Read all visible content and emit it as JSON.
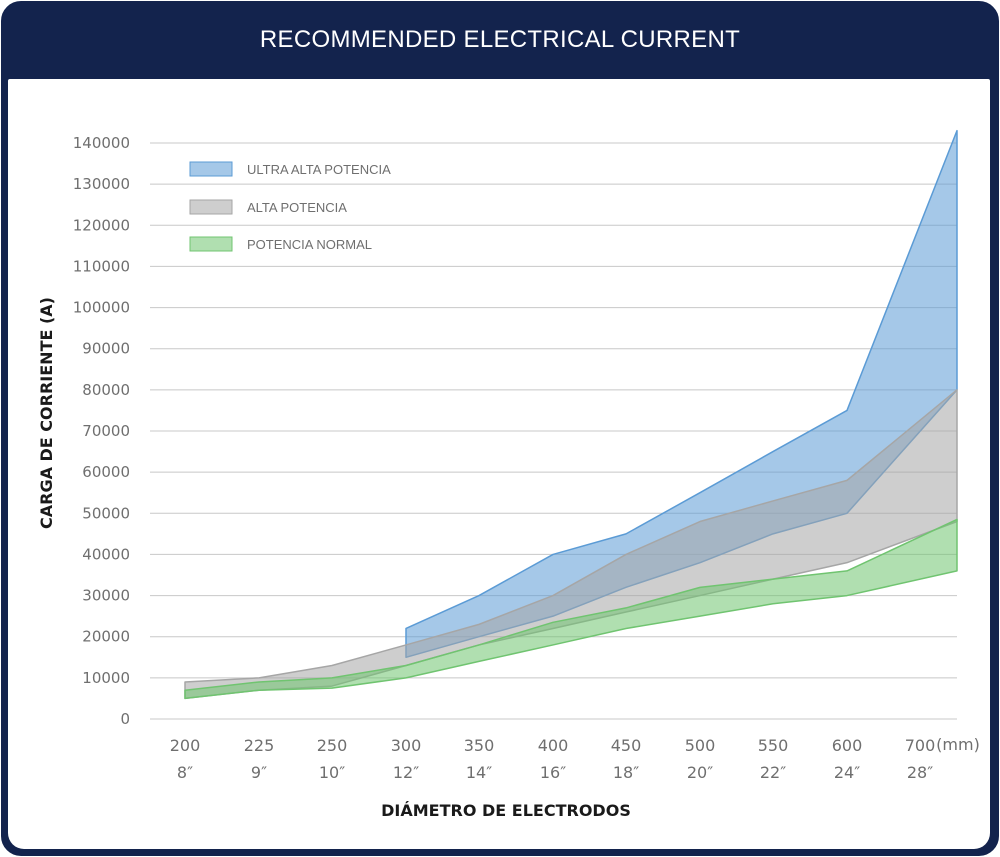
{
  "title": "RECOMMENDED ELECTRICAL CURRENT",
  "chart_data": {
    "type": "area",
    "ylabel": "CARGA DE CORRIENTE (A)",
    "xlabel": "DIÁMETRO DE ELECTRODOS",
    "x_unit": "(mm)",
    "categories_mm": [
      "200",
      "225",
      "250",
      "300",
      "350",
      "400",
      "450",
      "500",
      "550",
      "600",
      "700"
    ],
    "categories_inch": [
      "8″",
      "9″",
      "10″",
      "12″",
      "14″",
      "16″",
      "18″",
      "20″",
      "22″",
      "24″",
      "28″"
    ],
    "x_values": [
      200,
      225,
      250,
      300,
      350,
      400,
      450,
      500,
      550,
      600,
      700
    ],
    "y_ticks": [
      0,
      10000,
      20000,
      30000,
      40000,
      50000,
      60000,
      70000,
      80000,
      90000,
      100000,
      110000,
      120000,
      130000,
      140000
    ],
    "ylim": [
      0,
      140000
    ],
    "grid": true,
    "legend_position": "top-left",
    "series": [
      {
        "name": "ULTRA ALTA POTENCIA",
        "color": "#5b9bd5",
        "x": [
          300,
          350,
          400,
          450,
          500,
          550,
          600,
          700
        ],
        "lower": [
          15000,
          20000,
          25000,
          32000,
          38000,
          45000,
          50000,
          80000
        ],
        "upper": [
          22000,
          30000,
          40000,
          45000,
          55000,
          65000,
          75000,
          143000
        ]
      },
      {
        "name": "ALTA POTENCIA",
        "color": "#a6a6a6",
        "x": [
          200,
          225,
          250,
          300,
          350,
          400,
          450,
          500,
          550,
          600,
          700
        ],
        "lower": [
          5000,
          7000,
          8000,
          13000,
          18000,
          22000,
          26000,
          30000,
          34000,
          38000,
          48000
        ],
        "upper": [
          9000,
          10000,
          13000,
          18000,
          23000,
          30000,
          40000,
          48000,
          53000,
          58000,
          80000
        ]
      },
      {
        "name": "POTENCIA NORMAL",
        "color": "#70c470",
        "x": [
          200,
          225,
          250,
          300,
          350,
          400,
          450,
          500,
          550,
          600,
          700
        ],
        "lower": [
          5000,
          7000,
          7500,
          10000,
          14000,
          18000,
          22000,
          25000,
          28000,
          30000,
          36000
        ],
        "upper": [
          7000,
          9000,
          10000,
          13000,
          18000,
          23500,
          27000,
          32000,
          34000,
          36000,
          48500
        ]
      }
    ]
  }
}
